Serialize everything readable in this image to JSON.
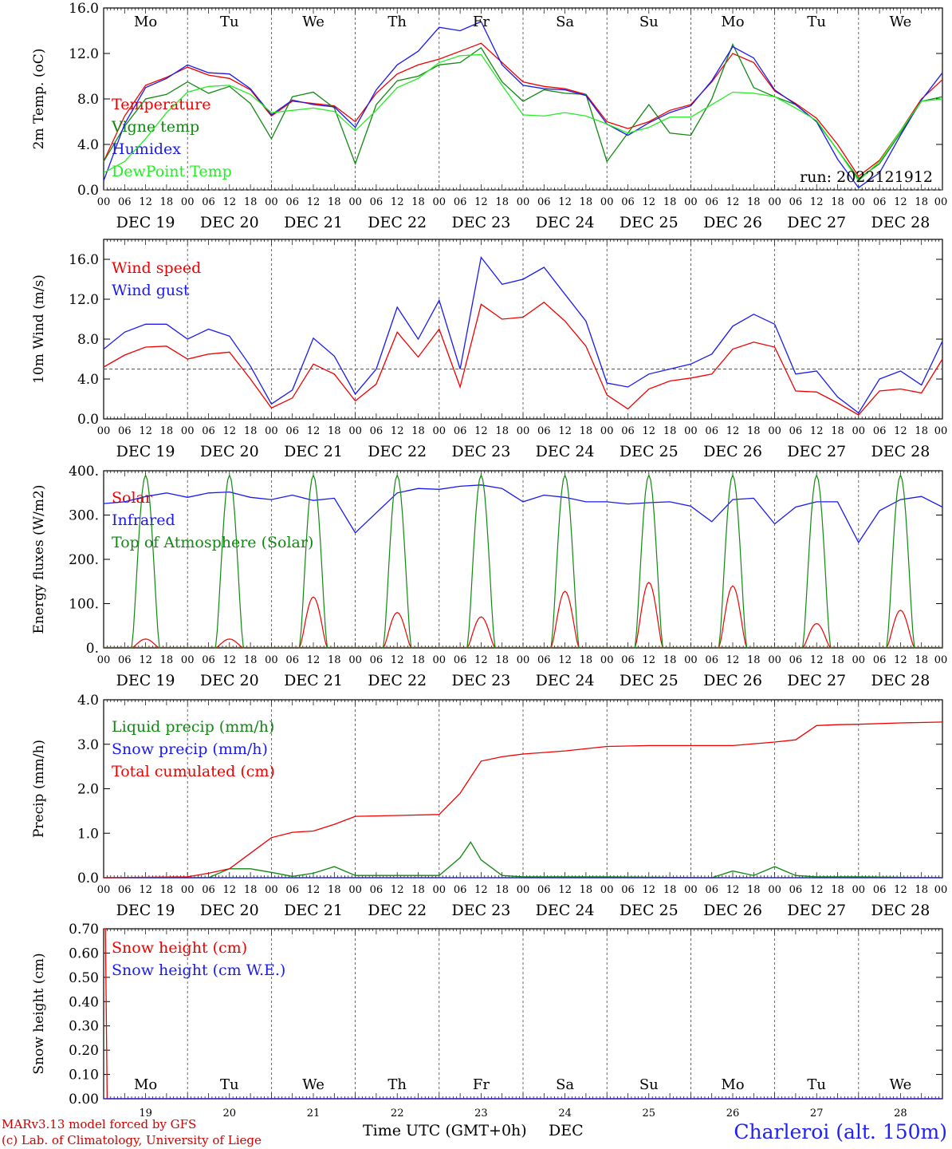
{
  "station": "Charleroi (alt. 150m)",
  "credits": [
    "MARv3.13 model forced by GFS",
    "(c) Lab. of Climatology, University of Liege"
  ],
  "x_axis_title": "Time UTC (GMT+0h)",
  "x_axis_month": "DEC",
  "run_label": "run: 2022121912",
  "days": [
    {
      "name": "Mo",
      "date": "DEC 19",
      "num": "19",
      "weekend": false
    },
    {
      "name": "Tu",
      "date": "DEC 20",
      "num": "20",
      "weekend": false
    },
    {
      "name": "We",
      "date": "DEC 21",
      "num": "21",
      "weekend": false
    },
    {
      "name": "Th",
      "date": "DEC 22",
      "num": "22",
      "weekend": false
    },
    {
      "name": "Fr",
      "date": "DEC 23",
      "num": "23",
      "weekend": false
    },
    {
      "name": "Sa",
      "date": "DEC 24",
      "num": "24",
      "weekend": true
    },
    {
      "name": "Su",
      "date": "DEC 25",
      "num": "25",
      "weekend": true
    },
    {
      "name": "Mo",
      "date": "DEC 26",
      "num": "26",
      "weekend": false
    },
    {
      "name": "Tu",
      "date": "DEC 27",
      "num": "27",
      "weekend": false
    },
    {
      "name": "We",
      "date": "DEC 28",
      "num": "28",
      "weekend": false
    }
  ],
  "hour_ticks": [
    "00",
    "06",
    "12",
    "18"
  ],
  "hour_end_tick": "00",
  "colors": {
    "red": "#ee0000",
    "blue": "#1a1aee",
    "green": "#118811",
    "lightgreen": "#22ee22",
    "weekend": "#ee0000"
  },
  "chart_data": [
    {
      "type": "line",
      "ylabel": "2m Temp. (oC)",
      "ylim": [
        0,
        16
      ],
      "yticks": [
        "0.0",
        "4.0",
        "8.0",
        "12.0",
        "16.0"
      ],
      "ytick_values": [
        0,
        4,
        8,
        12,
        16
      ],
      "reference_line": 0,
      "x_unit": "hours since DEC 19 00 UTC",
      "series": [
        {
          "name": "Temperature",
          "color": "red",
          "x": [
            0,
            6,
            12,
            18,
            24,
            30,
            36,
            42,
            48,
            54,
            60,
            66,
            72,
            78,
            84,
            90,
            96,
            102,
            108,
            114,
            120,
            126,
            132,
            138,
            144,
            150,
            156,
            162,
            168,
            174,
            180,
            186,
            192,
            198,
            204,
            210,
            216,
            222,
            228,
            234,
            240
          ],
          "y": [
            2.5,
            6.5,
            9.2,
            9.9,
            10.8,
            10.1,
            9.8,
            8.8,
            6.5,
            7.8,
            7.6,
            7.4,
            6.0,
            8.5,
            10.2,
            11.0,
            11.5,
            12.2,
            12.9,
            11.2,
            9.5,
            9.1,
            8.9,
            8.4,
            6.0,
            5.4,
            6.0,
            7.0,
            7.5,
            9.5,
            12.0,
            11.2,
            8.7,
            7.6,
            6.3,
            4.0,
            1.2,
            2.6,
            5.2,
            8.0,
            9.7
          ]
        },
        {
          "name": "Vigne temp",
          "color": "green",
          "x": [
            0,
            6,
            12,
            18,
            24,
            30,
            36,
            42,
            48,
            54,
            60,
            66,
            72,
            78,
            84,
            90,
            96,
            102,
            108,
            114,
            120,
            126,
            132,
            138,
            144,
            150,
            156,
            162,
            168,
            174,
            180,
            186,
            192,
            198,
            204,
            210,
            216,
            222,
            228,
            234,
            240
          ],
          "y": [
            2.5,
            5.6,
            8.0,
            8.4,
            9.5,
            8.5,
            9.1,
            7.6,
            4.5,
            8.2,
            8.6,
            7.2,
            2.3,
            7.5,
            9.6,
            10.0,
            11.0,
            11.2,
            12.5,
            9.5,
            7.8,
            8.8,
            8.5,
            8.4,
            2.5,
            5.0,
            7.5,
            5.0,
            4.8,
            8.0,
            12.8,
            9.0,
            8.2,
            7.5,
            6.0,
            3.5,
            1.0,
            2.3,
            5.0,
            7.8,
            8.2
          ]
        },
        {
          "name": "Humidex",
          "color": "blue",
          "x": [
            0,
            6,
            12,
            18,
            24,
            30,
            36,
            42,
            48,
            54,
            60,
            66,
            72,
            78,
            84,
            90,
            96,
            102,
            108,
            114,
            120,
            126,
            132,
            138,
            144,
            150,
            156,
            162,
            168,
            174,
            180,
            186,
            192,
            198,
            204,
            210,
            216,
            222,
            228,
            234,
            240
          ],
          "y": [
            0.8,
            5.8,
            9.0,
            9.8,
            11.0,
            10.3,
            10.2,
            8.9,
            6.6,
            7.9,
            7.5,
            7.3,
            5.5,
            8.8,
            11.0,
            12.2,
            14.3,
            14.0,
            14.8,
            11.0,
            9.2,
            8.9,
            8.8,
            8.3,
            5.8,
            4.8,
            5.9,
            6.8,
            7.4,
            9.6,
            12.6,
            11.6,
            8.8,
            7.5,
            6.0,
            2.7,
            0.2,
            1.5,
            4.8,
            7.9,
            10.3
          ]
        },
        {
          "name": "DewPoint Temp",
          "color": "lightgreen",
          "x": [
            0,
            6,
            12,
            18,
            24,
            30,
            36,
            42,
            48,
            54,
            60,
            66,
            72,
            78,
            84,
            90,
            96,
            102,
            108,
            114,
            120,
            126,
            132,
            138,
            144,
            150,
            156,
            162,
            168,
            174,
            180,
            186,
            192,
            198,
            204,
            210,
            216,
            222,
            228,
            234,
            240
          ],
          "y": [
            1.5,
            2.5,
            4.5,
            6.8,
            8.6,
            9.1,
            9.2,
            8.4,
            6.8,
            7.0,
            7.2,
            6.9,
            5.2,
            7.0,
            9.0,
            9.8,
            11.2,
            11.8,
            11.9,
            9.2,
            6.6,
            6.5,
            6.8,
            6.5,
            5.8,
            5.0,
            5.5,
            6.4,
            6.4,
            7.5,
            8.6,
            8.5,
            8.2,
            7.2,
            6.1,
            3.5,
            0.8,
            2.5,
            5.2,
            7.8,
            8.0
          ]
        }
      ]
    },
    {
      "type": "line",
      "ylabel": "10m Wind (m/s)",
      "ylim": [
        0,
        18
      ],
      "yticks": [
        "0.0",
        "4.0",
        "8.0",
        "12.0",
        "16.0"
      ],
      "ytick_values": [
        0,
        4,
        8,
        12,
        16
      ],
      "reference_line": 5,
      "x_unit": "hours since DEC 19 00 UTC",
      "series": [
        {
          "name": "Wind speed",
          "color": "red",
          "x": [
            0,
            6,
            12,
            18,
            24,
            30,
            36,
            42,
            48,
            54,
            60,
            66,
            72,
            78,
            84,
            90,
            96,
            102,
            108,
            114,
            120,
            126,
            132,
            138,
            144,
            150,
            156,
            162,
            168,
            174,
            180,
            186,
            192,
            198,
            204,
            210,
            216,
            222,
            228,
            234,
            240
          ],
          "y": [
            5.2,
            6.4,
            7.2,
            7.3,
            6.0,
            6.5,
            6.7,
            4.0,
            1.1,
            2.1,
            5.5,
            4.5,
            1.8,
            3.5,
            8.7,
            6.2,
            9.0,
            3.2,
            11.5,
            10.0,
            10.2,
            11.7,
            9.8,
            7.3,
            2.4,
            1.0,
            3.0,
            3.8,
            4.1,
            4.5,
            7.0,
            7.7,
            7.2,
            2.8,
            2.7,
            1.6,
            0.4,
            2.8,
            3.0,
            2.6,
            6.0
          ]
        },
        {
          "name": "Wind gust",
          "color": "blue",
          "x": [
            0,
            6,
            12,
            18,
            24,
            30,
            36,
            42,
            48,
            54,
            60,
            66,
            72,
            78,
            84,
            90,
            96,
            102,
            108,
            114,
            120,
            126,
            132,
            138,
            144,
            150,
            156,
            162,
            168,
            174,
            180,
            186,
            192,
            198,
            204,
            210,
            216,
            222,
            228,
            234,
            240
          ],
          "y": [
            7.0,
            8.7,
            9.5,
            9.5,
            8.0,
            9.0,
            8.3,
            5.3,
            1.5,
            2.9,
            8.1,
            6.3,
            2.5,
            5.0,
            11.2,
            8.0,
            11.9,
            5.0,
            16.2,
            13.5,
            14.0,
            15.2,
            12.5,
            9.8,
            3.6,
            3.2,
            4.5,
            5.0,
            5.5,
            6.5,
            9.3,
            10.5,
            9.5,
            4.5,
            4.8,
            2.2,
            0.6,
            4.0,
            4.8,
            3.4,
            7.8
          ]
        }
      ]
    },
    {
      "type": "line",
      "ylabel": "Energy fluxes (W/m2)",
      "ylim": [
        0,
        400
      ],
      "yticks": [
        "0.",
        "100.",
        "200.",
        "300.",
        "400."
      ],
      "ytick_values": [
        0,
        100,
        200,
        300,
        400
      ],
      "x_unit": "hours since DEC 19 00 UTC",
      "solar_window": [
        8,
        16
      ],
      "series": [
        {
          "name": "Solar",
          "color": "red",
          "daily_peak": [
            20,
            20,
            115,
            80,
            70,
            128,
            148,
            140,
            55,
            85
          ]
        },
        {
          "name": "Infrared",
          "color": "blue",
          "x": [
            0,
            6,
            12,
            18,
            24,
            30,
            36,
            42,
            48,
            54,
            60,
            66,
            72,
            78,
            84,
            90,
            96,
            102,
            108,
            114,
            120,
            126,
            132,
            138,
            144,
            150,
            156,
            162,
            168,
            174,
            180,
            186,
            192,
            198,
            204,
            210,
            216,
            222,
            228,
            234,
            240
          ],
          "y": [
            326,
            330,
            342,
            350,
            340,
            350,
            352,
            340,
            335,
            345,
            333,
            338,
            260,
            305,
            350,
            360,
            358,
            365,
            368,
            360,
            330,
            345,
            340,
            330,
            330,
            325,
            328,
            330,
            320,
            285,
            335,
            338,
            280,
            318,
            330,
            330,
            238,
            310,
            335,
            342,
            318
          ]
        },
        {
          "name": "Top of Atmosphere (Solar)",
          "color": "green",
          "daily_peak": 390
        }
      ]
    },
    {
      "type": "line",
      "ylabel": "Precip (mm/h)",
      "ylim": [
        0,
        4
      ],
      "yticks": [
        "0.0",
        "1.0",
        "2.0",
        "3.0",
        "4.0"
      ],
      "ytick_values": [
        0,
        1,
        2,
        3,
        4
      ],
      "x_unit": "hours since DEC 19 00 UTC",
      "series": [
        {
          "name": "Liquid precip (mm/h)",
          "color": "green",
          "x": [
            0,
            30,
            36,
            42,
            48,
            54,
            60,
            66,
            72,
            96,
            102,
            105,
            108,
            114,
            120,
            144,
            174,
            180,
            186,
            192,
            198,
            204,
            210,
            216,
            240
          ],
          "y": [
            0,
            0,
            0.2,
            0.2,
            0.12,
            0.03,
            0.1,
            0.25,
            0.05,
            0.05,
            0.45,
            0.8,
            0.4,
            0.05,
            0.02,
            0.02,
            0,
            0.15,
            0.05,
            0.25,
            0.05,
            0.02,
            0.02,
            0.02,
            0
          ]
        },
        {
          "name": "Snow precip (mm/h)",
          "color": "blue",
          "x": [
            0,
            240
          ],
          "y": [
            0,
            0
          ]
        },
        {
          "name": "Total cumulated (cm)",
          "color": "red",
          "x": [
            0,
            24,
            30,
            36,
            42,
            48,
            54,
            60,
            66,
            72,
            84,
            96,
            102,
            108,
            114,
            120,
            132,
            144,
            156,
            168,
            180,
            192,
            198,
            204,
            210,
            216,
            228,
            240
          ],
          "y": [
            0,
            0.02,
            0.1,
            0.2,
            0.55,
            0.9,
            1.02,
            1.05,
            1.2,
            1.38,
            1.4,
            1.42,
            1.9,
            2.62,
            2.72,
            2.78,
            2.85,
            2.95,
            2.97,
            2.97,
            2.97,
            3.05,
            3.1,
            3.42,
            3.44,
            3.45,
            3.48,
            3.5
          ]
        }
      ]
    },
    {
      "type": "line",
      "ylabel": "Snow height (cm)",
      "ylim": [
        0,
        0.7
      ],
      "yticks": [
        "0.00",
        "0.10",
        "0.20",
        "0.30",
        "0.40",
        "0.50",
        "0.60",
        "0.70"
      ],
      "ytick_values": [
        0,
        0.1,
        0.2,
        0.3,
        0.4,
        0.5,
        0.6,
        0.7
      ],
      "x_unit": "hours since DEC 19 00 UTC",
      "series": [
        {
          "name": "Snow height (cm)",
          "color": "red",
          "x": [
            0,
            0.5,
            1,
            240
          ],
          "y": [
            0.7,
            0.7,
            0,
            0
          ]
        },
        {
          "name": "Snow height (cm W.E.)",
          "color": "blue",
          "x": [
            0,
            240
          ],
          "y": [
            0,
            0
          ]
        }
      ]
    }
  ]
}
